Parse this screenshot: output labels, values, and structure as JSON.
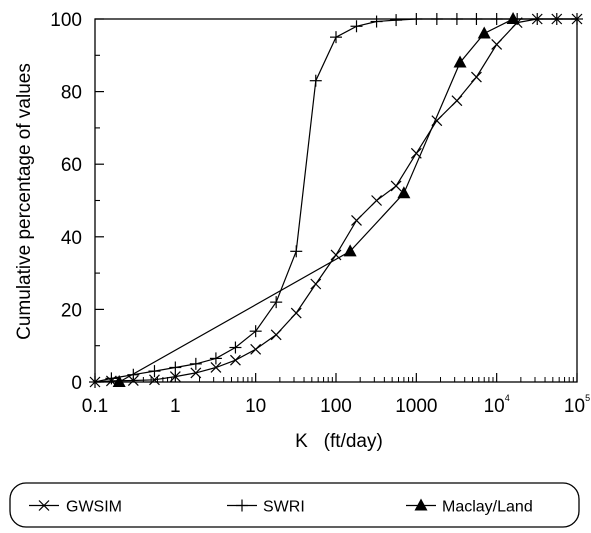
{
  "chart_data": {
    "type": "line",
    "title": "",
    "xlabel": "K   (ft/day)",
    "ylabel": "Cumulative percentage of values",
    "xscale": "log",
    "xlim": [
      0.1,
      100000
    ],
    "ylim": [
      0,
      100
    ],
    "x_ticks": [
      {
        "value": 0.1,
        "label": "0.1",
        "sup": ""
      },
      {
        "value": 1,
        "label": "1",
        "sup": ""
      },
      {
        "value": 10,
        "label": "10",
        "sup": ""
      },
      {
        "value": 100,
        "label": "100",
        "sup": ""
      },
      {
        "value": 1000,
        "label": "1000",
        "sup": ""
      },
      {
        "value": 10000,
        "label": "10",
        "sup": "4"
      },
      {
        "value": 100000,
        "label": "10",
        "sup": "5"
      }
    ],
    "y_ticks": [
      0,
      20,
      40,
      60,
      80,
      100
    ],
    "grid": false,
    "legend_position": "bottom",
    "series": [
      {
        "name": "GWSIM",
        "marker": "x",
        "color": "#000000",
        "x": [
          0.1,
          0.16,
          0.3,
          0.55,
          1,
          1.8,
          3.2,
          5.6,
          10,
          18,
          32,
          56,
          100,
          180,
          320,
          560,
          1000,
          1800,
          3200,
          5600,
          10000,
          18000,
          32000,
          56000,
          100000
        ],
        "y": [
          0,
          0.3,
          0.4,
          0.6,
          1.5,
          2.5,
          4,
          6,
          9,
          13,
          19,
          27,
          35,
          44.5,
          50,
          54,
          63,
          72,
          77.5,
          84,
          93,
          99,
          100,
          100,
          100
        ]
      },
      {
        "name": "SWRI",
        "marker": "plus",
        "color": "#000000",
        "x": [
          0.1,
          0.16,
          0.3,
          0.55,
          1,
          1.8,
          3.2,
          5.6,
          10,
          18,
          32,
          56,
          100,
          180,
          320,
          560,
          1000,
          1800,
          3200,
          5600,
          10000,
          18000,
          32000,
          56000,
          100000
        ],
        "y": [
          0,
          1,
          2,
          3,
          4,
          5,
          6.5,
          9.5,
          14,
          22,
          36,
          83,
          95,
          98,
          99.3,
          99.7,
          100,
          100,
          100,
          100,
          100,
          100,
          100,
          100,
          100
        ]
      },
      {
        "name": "Maclay/Land",
        "marker": "triangle",
        "color": "#000000",
        "x": [
          0.2,
          150,
          700,
          3500,
          7000,
          16000
        ],
        "y": [
          0,
          36,
          52,
          88,
          96,
          100
        ]
      }
    ]
  }
}
